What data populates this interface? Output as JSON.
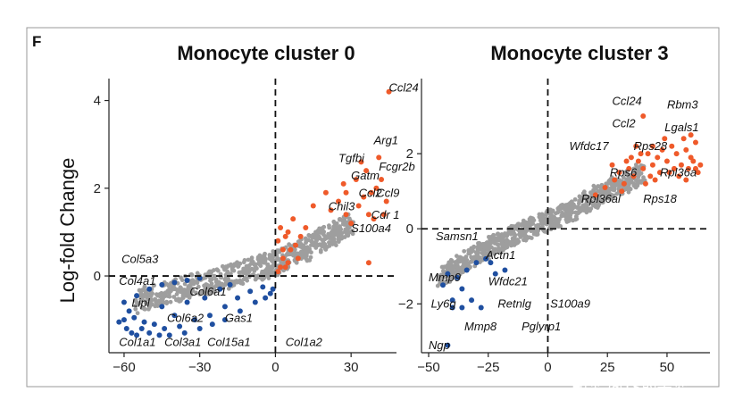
{
  "figure": {
    "panel_letter": "F",
    "watermark": "知乎 @TS的美梦"
  },
  "colors": {
    "up": "#ef5a2a",
    "down": "#1f4fa0",
    "neutral": "#9e9e9e"
  },
  "chart_data": [
    {
      "type": "scatter",
      "title": "Monocyte cluster 0",
      "ylabel": "Log-fold Change",
      "xlabel": "",
      "xlim": [
        -66,
        48
      ],
      "ylim": [
        -1.75,
        4.5
      ],
      "xticks": [
        -60,
        -30,
        0,
        30
      ],
      "yticks": [
        0,
        2,
        4
      ],
      "vline_x": 0,
      "hline_y": 0,
      "neutral_cloud": [
        [
          -55,
          -0.6
        ],
        [
          -45,
          -0.4
        ],
        [
          -35,
          -0.25
        ],
        [
          -25,
          -0.1
        ],
        [
          -15,
          0.05
        ],
        [
          -5,
          0.2
        ],
        [
          0,
          0.3
        ],
        [
          8,
          0.5
        ],
        [
          16,
          0.75
        ],
        [
          24,
          1.0
        ],
        [
          30,
          1.2
        ]
      ],
      "series": [
        {
          "group": "up",
          "points": [
            [
              1,
              0.1
            ],
            [
              2,
              0.2
            ],
            [
              3,
              0.4
            ],
            [
              5,
              0.3
            ],
            [
              6,
              0.6
            ],
            [
              8,
              0.7
            ],
            [
              4,
              0.9
            ],
            [
              2,
              1.1
            ],
            [
              7,
              1.3
            ],
            [
              3,
              0.6
            ],
            [
              9,
              0.4
            ],
            [
              1,
              0.8
            ],
            [
              5,
              1.0
            ],
            [
              10,
              0.9
            ],
            [
              4,
              0.2
            ],
            [
              12,
              1.1
            ],
            [
              15,
              1.6
            ],
            [
              20,
              1.9
            ],
            [
              22,
              1.5
            ],
            [
              25,
              1.7
            ],
            [
              27,
              2.1
            ],
            [
              28,
              1.4
            ],
            [
              30,
              1.2
            ],
            [
              32,
              2.2
            ],
            [
              33,
              1.6
            ],
            [
              35,
              1.8
            ],
            [
              36,
              2.4
            ],
            [
              37,
              1.4
            ],
            [
              38,
              1.9
            ],
            [
              40,
              2.0
            ],
            [
              34,
              2.6
            ],
            [
              41,
              2.7
            ],
            [
              42,
              2.2
            ],
            [
              43,
              1.4
            ],
            [
              44,
              1.7
            ],
            [
              39,
              1.3
            ],
            [
              28,
              1.9
            ],
            [
              37,
              0.3
            ],
            [
              45,
              4.2
            ]
          ]
        },
        {
          "group": "down",
          "points": [
            [
              -30,
              -0.05
            ],
            [
              -35,
              -0.1
            ],
            [
              -40,
              -0.15
            ],
            [
              -45,
              -0.2
            ],
            [
              -50,
              -0.3
            ],
            [
              -55,
              -0.45
            ],
            [
              -60,
              -0.6
            ],
            [
              -58,
              -0.8
            ],
            [
              -56,
              -0.95
            ],
            [
              -52,
              -1.05
            ],
            [
              -48,
              -1.1
            ],
            [
              -44,
              -1.2
            ],
            [
              -38,
              -1.15
            ],
            [
              -32,
              -1.0
            ],
            [
              -26,
              -0.9
            ],
            [
              -20,
              -0.7
            ],
            [
              -15,
              -0.5
            ],
            [
              -10,
              -0.35
            ],
            [
              -5,
              -0.25
            ],
            [
              -2,
              -0.4
            ],
            [
              -60,
              -1.0
            ],
            [
              -62,
              -1.05
            ],
            [
              -59,
              -1.2
            ],
            [
              -57,
              -1.3
            ],
            [
              -55,
              -1.35
            ],
            [
              -53,
              -1.2
            ],
            [
              -50,
              -1.3
            ],
            [
              -46,
              -1.35
            ],
            [
              -42,
              -1.35
            ],
            [
              -36,
              -1.3
            ],
            [
              -30,
              -1.2
            ],
            [
              -25,
              -1.1
            ],
            [
              -20,
              -1.0
            ],
            [
              -14,
              -0.8
            ],
            [
              -8,
              -0.6
            ],
            [
              -4,
              -0.5
            ],
            [
              -1,
              -0.3
            ],
            [
              -45,
              -0.7
            ],
            [
              -40,
              -0.9
            ],
            [
              -35,
              -0.6
            ],
            [
              -28,
              -0.5
            ],
            [
              -22,
              -0.3
            ],
            [
              -18,
              -0.2
            ]
          ]
        }
      ],
      "gene_labels": [
        {
          "text": "Ccl24",
          "x": 45,
          "y": 4.2
        },
        {
          "text": "Tgfbi",
          "x": 25,
          "y": 2.6
        },
        {
          "text": "Arg1",
          "x": 39,
          "y": 3.0
        },
        {
          "text": "Gatm",
          "x": 30,
          "y": 2.2
        },
        {
          "text": "Fcgr2b",
          "x": 41,
          "y": 2.4
        },
        {
          "text": "Ccl2",
          "x": 33,
          "y": 1.8
        },
        {
          "text": "Ccl9",
          "x": 40,
          "y": 1.8
        },
        {
          "text": "Chil3",
          "x": 21,
          "y": 1.5
        },
        {
          "text": "Cdr 1",
          "x": 38,
          "y": 1.3
        },
        {
          "text": "S100a4",
          "x": 30,
          "y": 1.0
        },
        {
          "text": "Col5a3",
          "x": -61,
          "y": 0.3
        },
        {
          "text": "Col4a1",
          "x": -62,
          "y": -0.2
        },
        {
          "text": "Lipl",
          "x": -57,
          "y": -0.7
        },
        {
          "text": "Col6a1",
          "x": -34,
          "y": -0.45
        },
        {
          "text": "Col6a2",
          "x": -43,
          "y": -1.05
        },
        {
          "text": "Gas1",
          "x": -20,
          "y": -1.05
        },
        {
          "text": "Col1a1",
          "x": -62,
          "y": -1.6
        },
        {
          "text": "Col3a1",
          "x": -44,
          "y": -1.6
        },
        {
          "text": "Col15a1",
          "x": -27,
          "y": -1.6
        },
        {
          "text": "Col1a2",
          "x": 4,
          "y": -1.6
        }
      ]
    },
    {
      "type": "scatter",
      "title": "Monocyte cluster 3",
      "ylabel": "",
      "xlabel": "",
      "xlim": [
        -53,
        68
      ],
      "ylim": [
        -3.3,
        4.0
      ],
      "xticks": [
        -50,
        -25,
        0,
        25,
        50
      ],
      "yticks": [
        -2,
        0,
        2
      ],
      "vline_x": 0,
      "hline_y": 0,
      "neutral_cloud": [
        [
          -45,
          -1.3
        ],
        [
          -38,
          -1.0
        ],
        [
          -30,
          -0.7
        ],
        [
          -22,
          -0.4
        ],
        [
          -15,
          -0.2
        ],
        [
          -8,
          0.0
        ],
        [
          0,
          0.2
        ],
        [
          8,
          0.4
        ],
        [
          16,
          0.7
        ],
        [
          24,
          1.0
        ],
        [
          32,
          1.2
        ],
        [
          40,
          1.5
        ]
      ],
      "series": [
        {
          "group": "up",
          "points": [
            [
              20,
              0.9
            ],
            [
              24,
              1.1
            ],
            [
              28,
              1.3
            ],
            [
              30,
              1.5
            ],
            [
              32,
              1.2
            ],
            [
              34,
              1.6
            ],
            [
              36,
              1.4
            ],
            [
              38,
              1.8
            ],
            [
              40,
              1.6
            ],
            [
              42,
              2.0
            ],
            [
              44,
              1.7
            ],
            [
              46,
              1.9
            ],
            [
              48,
              2.1
            ],
            [
              50,
              1.8
            ],
            [
              52,
              2.2
            ],
            [
              54,
              2.0
            ],
            [
              56,
              1.7
            ],
            [
              58,
              2.1
            ],
            [
              60,
              1.9
            ],
            [
              62,
              2.3
            ],
            [
              39,
              2.0
            ],
            [
              43,
              1.4
            ],
            [
              47,
              1.5
            ],
            [
              51,
              1.5
            ],
            [
              55,
              1.4
            ],
            [
              59,
              1.6
            ],
            [
              41,
              1.2
            ],
            [
              45,
              1.3
            ],
            [
              53,
              1.6
            ],
            [
              57,
              2.4
            ],
            [
              61,
              1.8
            ],
            [
              63,
              1.5
            ],
            [
              35,
              1.9
            ],
            [
              37,
              2.2
            ],
            [
              49,
              2.4
            ],
            [
              33,
              1.8
            ],
            [
              40,
              3.0
            ],
            [
              62,
              1.6
            ],
            [
              58,
              1.3
            ],
            [
              44,
              2.2
            ],
            [
              27,
              1.7
            ],
            [
              31,
              1.0
            ],
            [
              60,
              2.5
            ],
            [
              64,
              1.7
            ]
          ]
        },
        {
          "group": "down",
          "points": [
            [
              -42,
              -1.2
            ],
            [
              -38,
              -1.3
            ],
            [
              -34,
              -1.1
            ],
            [
              -30,
              -0.9
            ],
            [
              -26,
              -0.8
            ],
            [
              -36,
              -1.6
            ],
            [
              -32,
              -1.9
            ],
            [
              -28,
              -2.1
            ],
            [
              -40,
              -1.9
            ],
            [
              -44,
              -1.5
            ],
            [
              -22,
              -1.2
            ],
            [
              -18,
              -1.1
            ],
            [
              -40,
              -2.1
            ],
            [
              -36,
              -2.1
            ],
            [
              -42,
              -3.1
            ],
            [
              -24,
              -0.9
            ]
          ]
        }
      ],
      "gene_labels": [
        {
          "text": "Ccl24",
          "x": 27,
          "y": 3.3
        },
        {
          "text": "Rbm3",
          "x": 50,
          "y": 3.2
        },
        {
          "text": "Ccl2",
          "x": 27,
          "y": 2.7
        },
        {
          "text": "Lgals1",
          "x": 49,
          "y": 2.6
        },
        {
          "text": "Wfdc17",
          "x": 9,
          "y": 2.1
        },
        {
          "text": "Rps28",
          "x": 36,
          "y": 2.1
        },
        {
          "text": "Rps6",
          "x": 26,
          "y": 1.4
        },
        {
          "text": "Rpl36a",
          "x": 47,
          "y": 1.4
        },
        {
          "text": "Rpl36al",
          "x": 14,
          "y": 0.7
        },
        {
          "text": "Rps18",
          "x": 40,
          "y": 0.7
        },
        {
          "text": "Samsn1",
          "x": -47,
          "y": -0.3
        },
        {
          "text": "Actn1",
          "x": -26,
          "y": -0.8
        },
        {
          "text": "Mmp9",
          "x": -50,
          "y": -1.4
        },
        {
          "text": "Wfdc21",
          "x": -25,
          "y": -1.5
        },
        {
          "text": "Ly6g",
          "x": -49,
          "y": -2.1
        },
        {
          "text": "Retnlg",
          "x": -21,
          "y": -2.1
        },
        {
          "text": "S100a9",
          "x": 1,
          "y": -2.1
        },
        {
          "text": "Mmp8",
          "x": -35,
          "y": -2.7
        },
        {
          "text": "Pglyrp1",
          "x": -11,
          "y": -2.7
        },
        {
          "text": "Ngp",
          "x": -50,
          "y": -3.2
        }
      ]
    }
  ]
}
